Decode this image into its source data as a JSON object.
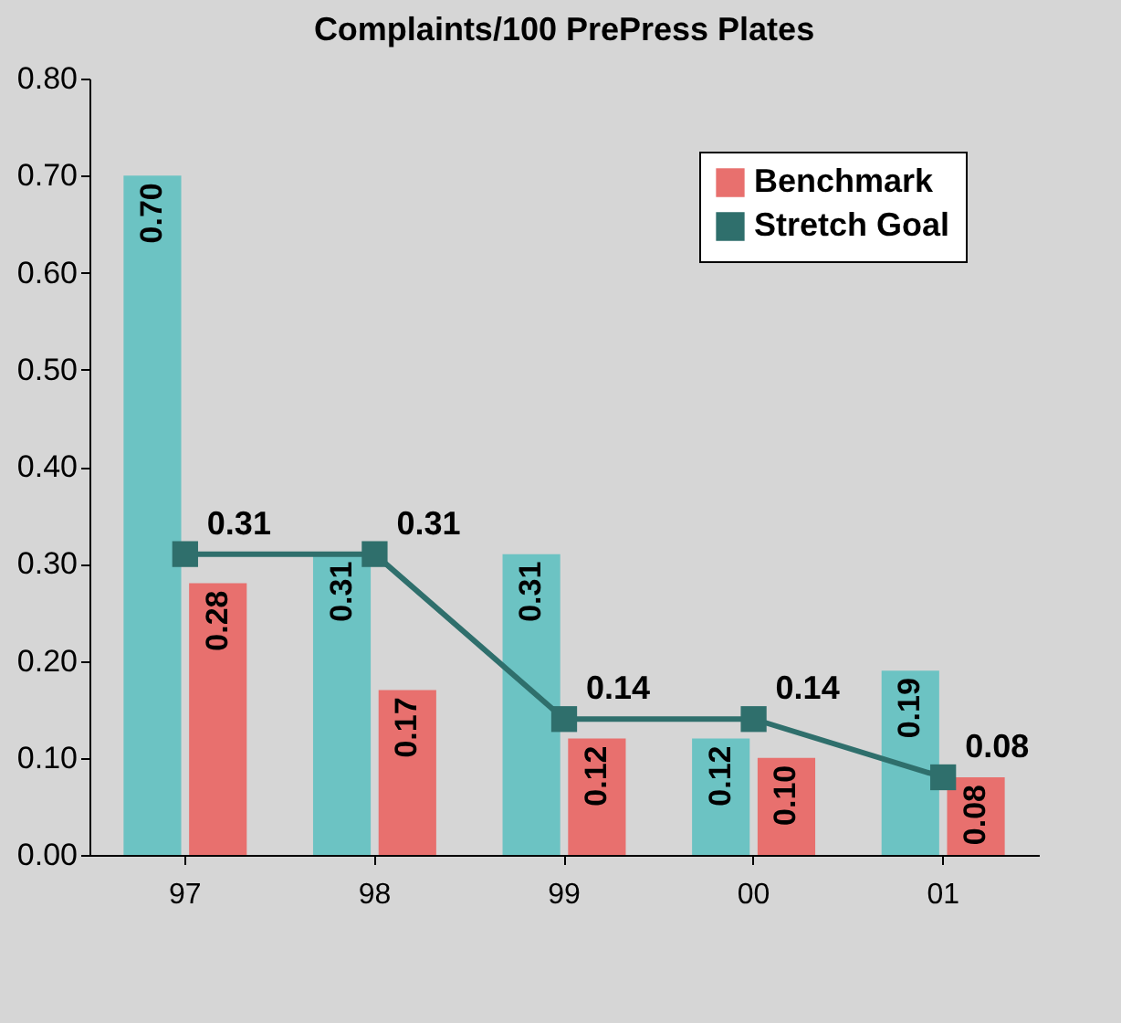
{
  "chart_data": {
    "type": "bar",
    "title": "Complaints/100 PrePress Plates",
    "categories": [
      "97",
      "98",
      "99",
      "00",
      "01"
    ],
    "series": [
      {
        "color": "#6cc3c3",
        "values": [
          0.7,
          0.31,
          0.31,
          0.12,
          0.19
        ],
        "value_labels": [
          "0.70",
          "0.31",
          "0.31",
          "0.12",
          "0.19"
        ]
      },
      {
        "name": "Benchmark",
        "color": "#e8706e",
        "values": [
          0.28,
          0.17,
          0.12,
          0.1,
          0.08
        ],
        "value_labels": [
          "0.28",
          "0.17",
          "0.12",
          "0.10",
          "0.08"
        ]
      },
      {
        "name": "Stretch Goal",
        "type": "line",
        "color": "#2f6f6c",
        "values": [
          0.31,
          0.31,
          0.14,
          0.14,
          0.08
        ],
        "value_labels": [
          "0.31",
          "0.31",
          "0.14",
          "0.14",
          "0.08"
        ]
      }
    ],
    "ylim": [
      0,
      0.8
    ],
    "yticks": [
      {
        "value": 0,
        "label": "0.00"
      },
      {
        "value": 0.1,
        "label": "0.10"
      },
      {
        "value": 0.2,
        "label": "0.20"
      },
      {
        "value": 0.3,
        "label": "0.30"
      },
      {
        "value": 0.4,
        "label": "0.40"
      },
      {
        "value": 0.5,
        "label": "0.50"
      },
      {
        "value": 0.6,
        "label": "0.60"
      },
      {
        "value": 0.7,
        "label": "0.70"
      },
      {
        "value": 0.8,
        "label": "0.80"
      }
    ],
    "grid": false,
    "legend": "top right",
    "marker": "square",
    "line_style": "solid"
  }
}
